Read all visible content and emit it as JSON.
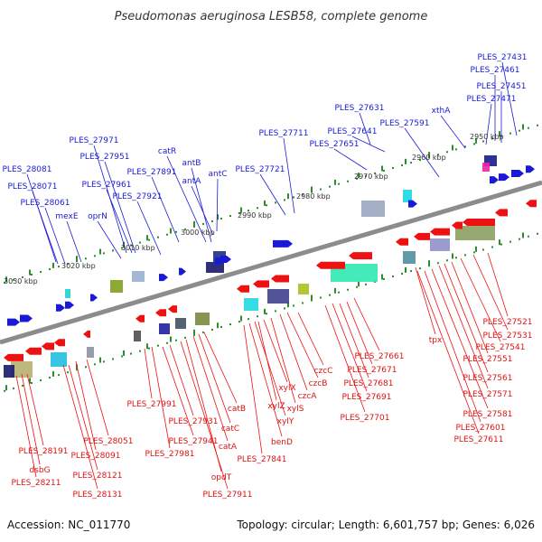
{
  "title": "Pseudomonas aeruginosa LESB58, complete genome",
  "footer": {
    "accession": "Accession: NC_011770",
    "topology": "Topology: circular; Length: 6,601,757 bp; Genes: 6,026"
  },
  "colors": {
    "forward": "#1a1ad6",
    "reverse": "#ee1111",
    "tick": "#2e8b2e",
    "backbone": "#8c8c8c"
  },
  "kbp_labels": [
    "2950 kbp",
    "2960 kbp",
    "2970 kbp",
    "2980 kbp",
    "2990 kbp",
    "3000 kbp",
    "3010 kbp",
    "3020 kbp",
    "3030 kbp"
  ],
  "forward_labels": [
    "PLES_27431",
    "PLES_27461",
    "PLES_27451",
    "PLES_27471",
    "xthA",
    "PLES_27591",
    "PLES_27631",
    "PLES_27641",
    "PLES_27651",
    "PLES_27711",
    "PLES_27721",
    "catR",
    "antB",
    "antA",
    "antC",
    "PLES_27891",
    "PLES_27971",
    "PLES_27951",
    "PLES_27961",
    "PLES_27921",
    "oprN",
    "mexE",
    "PLES_28081",
    "PLES_28071",
    "PLES_28061"
  ],
  "reverse_labels": [
    "PLES_27521",
    "PLES_27531",
    "tpx",
    "PLES_27541",
    "PLES_27551",
    "PLES_27561",
    "PLES_27571",
    "PLES_27581",
    "PLES_27601",
    "PLES_27611",
    "PLES_27661",
    "PLES_27671",
    "PLES_27681",
    "PLES_27691",
    "PLES_27701",
    "czcC",
    "czcB",
    "czcA",
    "xylX",
    "xylZ",
    "xylS",
    "xylY",
    "benD",
    "PLES_27841",
    "catB",
    "catC",
    "catA",
    "opdT",
    "PLES_27911",
    "PLES_27931",
    "PLES_27941",
    "PLES_27991",
    "PLES_27981",
    "PLES_28051",
    "PLES_28091",
    "PLES_28121",
    "PLES_28131",
    "PLES_28191",
    "dsbG",
    "PLES_28211"
  ]
}
